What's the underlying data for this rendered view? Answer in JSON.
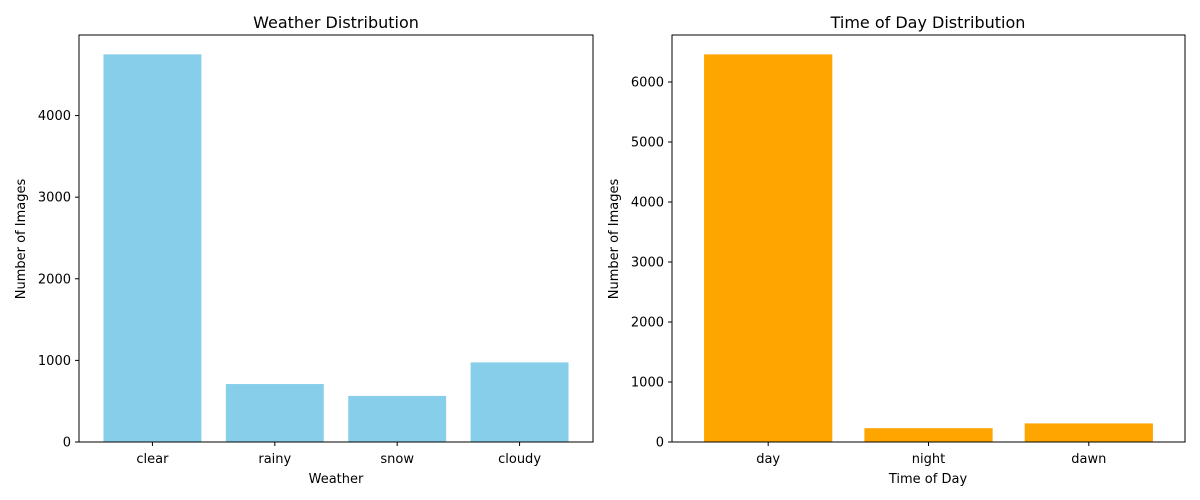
{
  "chart_data": [
    {
      "type": "bar",
      "title": "Weather Distribution",
      "xlabel": "Weather",
      "ylabel": "Number of Images",
      "categories": [
        "clear",
        "rainy",
        "snow",
        "cloudy"
      ],
      "values": [
        4750,
        710,
        565,
        975
      ],
      "ylim": [
        0,
        4987
      ],
      "yticks": [
        0,
        1000,
        2000,
        3000,
        4000
      ],
      "color": "#87ceeb",
      "grid": false,
      "legend": false
    },
    {
      "type": "bar",
      "title": "Time of Day Distribution",
      "xlabel": "Time of Day",
      "ylabel": "Number of Images",
      "categories": [
        "day",
        "night",
        "dawn"
      ],
      "values": [
        6460,
        230,
        310
      ],
      "ylim": [
        0,
        6783
      ],
      "yticks": [
        0,
        1000,
        2000,
        3000,
        4000,
        5000,
        6000
      ],
      "color": "#ffa500",
      "grid": false,
      "legend": false
    }
  ]
}
